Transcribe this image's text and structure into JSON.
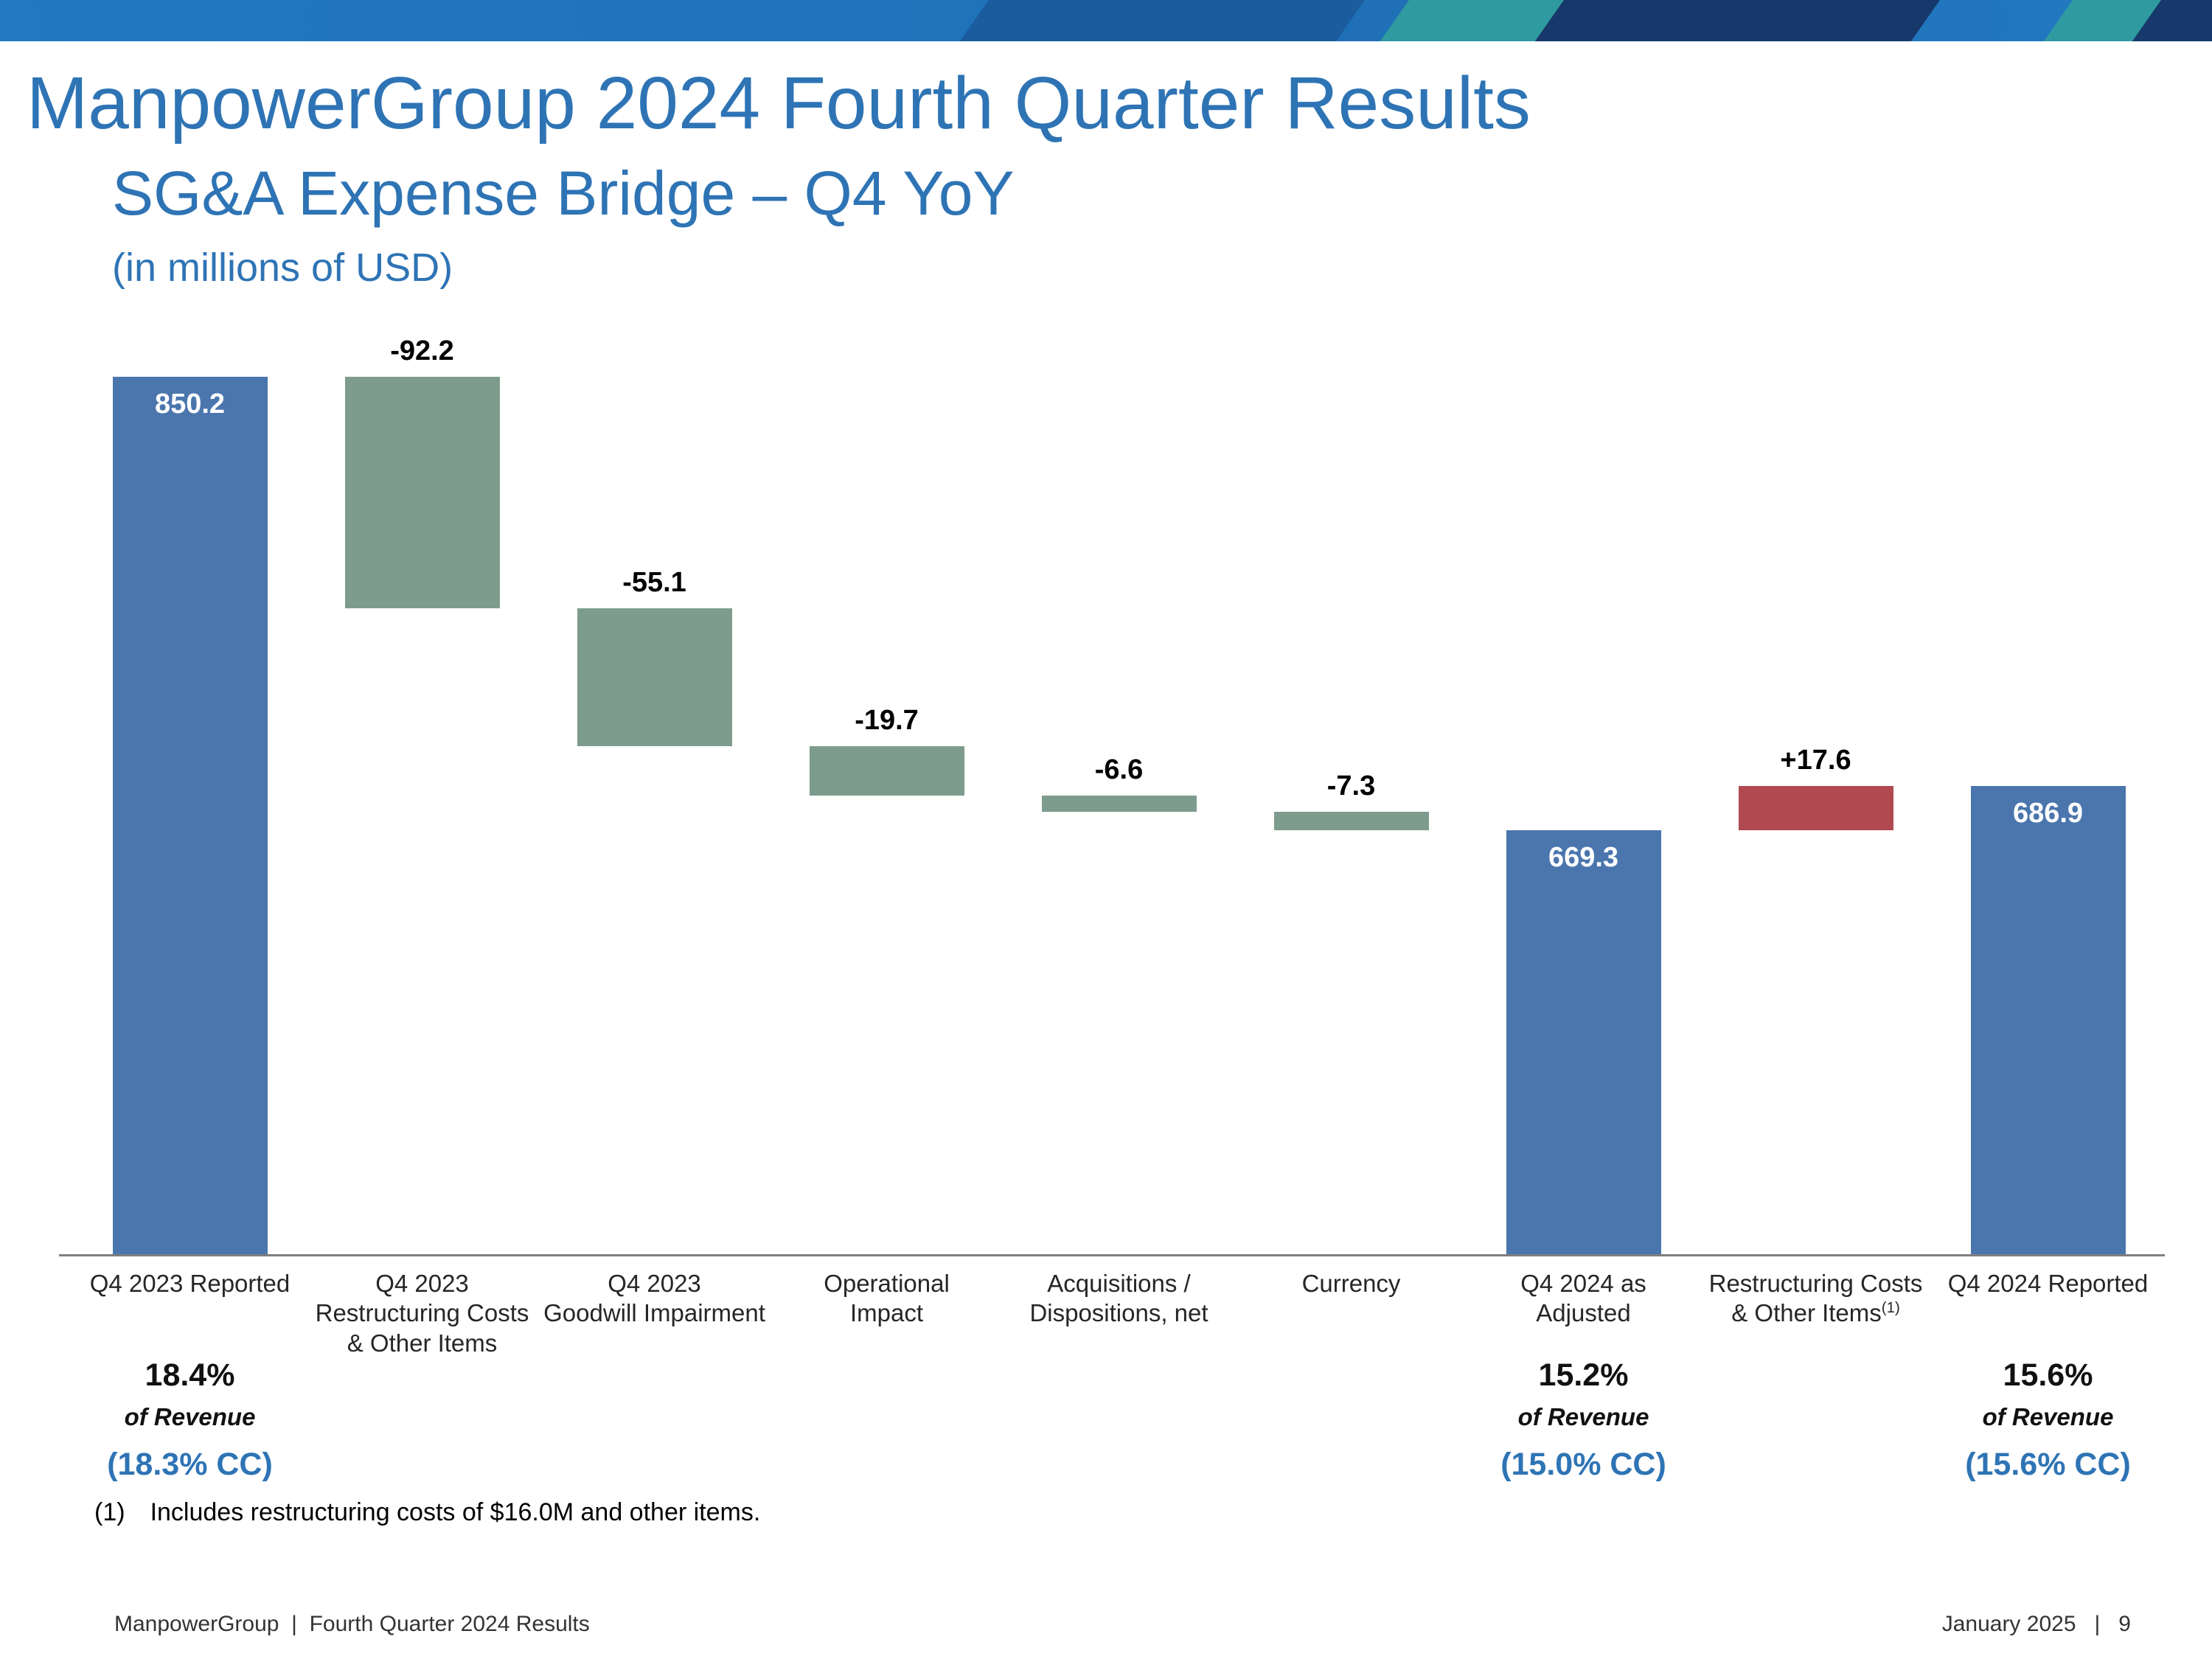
{
  "header": {
    "title": "ManpowerGroup 2024 Fourth Quarter Results",
    "subtitle": "SG&A Expense Bridge – Q4 YoY",
    "units": "(in millions of USD)"
  },
  "theme": {
    "accent_blue": "#2E74B5",
    "band_blue": "#2279C1",
    "band_navy": "#16386A",
    "band_teal": "#2F9AA0"
  },
  "chart_data": {
    "type": "waterfall",
    "title": "SG&A Expense Bridge – Q4 YoY",
    "units_label": "(in millions of USD)",
    "ylim": [
      500,
      855
    ],
    "grid": false,
    "legend": false,
    "colors": {
      "total": "#4A76AD",
      "decrease": "#7D9C8D",
      "increase": "#B04A50"
    },
    "bars": [
      {
        "label_lines": [
          "Q4 2023 Reported"
        ],
        "value": 850.2,
        "display": "850.2",
        "kind": "total"
      },
      {
        "label_lines": [
          "Q4 2023",
          "Restructuring Costs",
          "& Other Items"
        ],
        "value": -92.2,
        "display": "-92.2",
        "kind": "decrease"
      },
      {
        "label_lines": [
          "Q4 2023",
          "Goodwill Impairment"
        ],
        "value": -55.1,
        "display": "-55.1",
        "kind": "decrease"
      },
      {
        "label_lines": [
          "Operational",
          "Impact"
        ],
        "value": -19.7,
        "display": "-19.7",
        "kind": "decrease"
      },
      {
        "label_lines": [
          "Acquisitions /",
          "Dispositions, net"
        ],
        "value": -6.6,
        "display": "-6.6",
        "kind": "decrease"
      },
      {
        "label_lines": [
          "Currency"
        ],
        "value": -7.3,
        "display": "-7.3",
        "kind": "decrease"
      },
      {
        "label_lines": [
          "Q4 2024 as",
          "Adjusted"
        ],
        "value": 669.3,
        "display": "669.3",
        "kind": "total"
      },
      {
        "label_lines": [
          "Restructuring Costs",
          "& Other Items"
        ],
        "label_sup": "(1)",
        "value": 17.6,
        "display": "+17.6",
        "kind": "increase"
      },
      {
        "label_lines": [
          "Q4 2024 Reported"
        ],
        "value": 686.9,
        "display": "686.9",
        "kind": "total"
      }
    ],
    "annotations": [
      {
        "bar": 0,
        "pct": "18.4%",
        "of": "of Revenue",
        "cc": "(18.3% CC)"
      },
      {
        "bar": 6,
        "pct": "15.2%",
        "of": "of Revenue",
        "cc": "(15.0% CC)"
      },
      {
        "bar": 8,
        "pct": "15.6%",
        "of": "of Revenue",
        "cc": "(15.6% CC)"
      }
    ]
  },
  "footnote": {
    "marker": "(1)",
    "text": "Includes restructuring costs of $16.0M and other items."
  },
  "footer": {
    "left": "ManpowerGroup  |  Fourth Quarter 2024 Results",
    "right": "January 2025   |   9"
  }
}
